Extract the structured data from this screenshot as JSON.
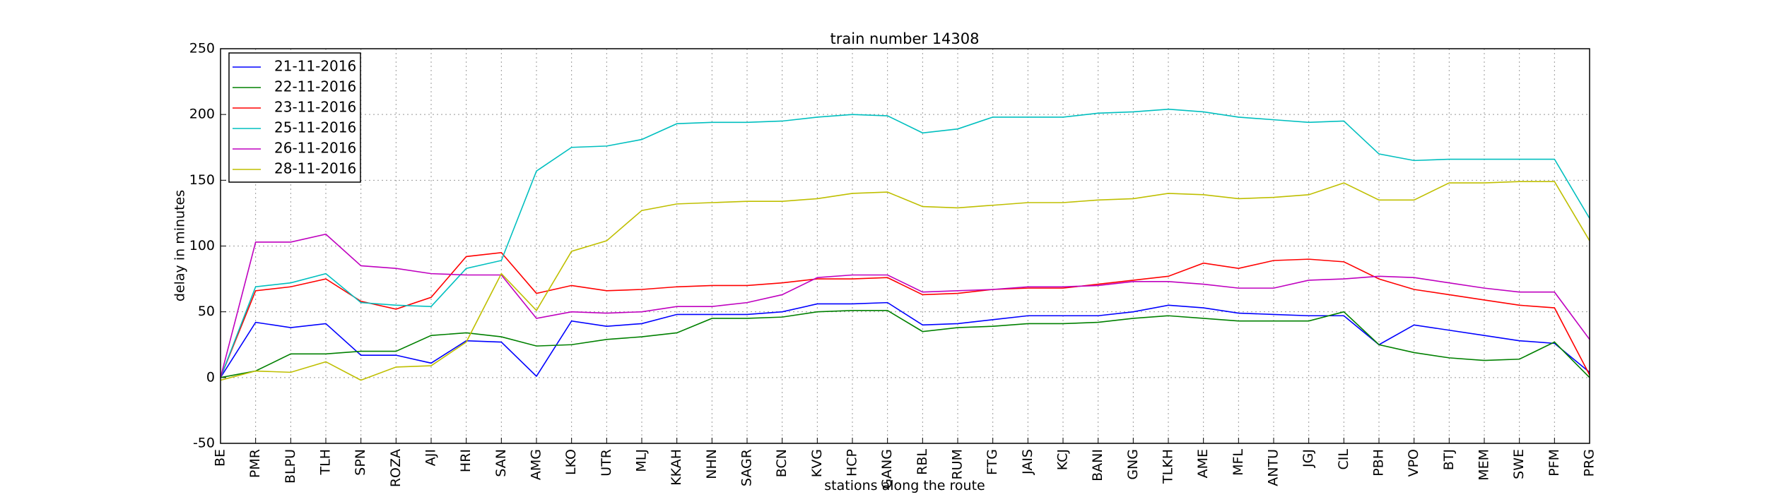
{
  "chart_data": {
    "type": "line",
    "title": "train number 14308",
    "x_label": "stations along the route",
    "y_label": "delay in minutes",
    "categories": [
      "BE",
      "PMR",
      "BLPU",
      "TLH",
      "SPN",
      "ROZA",
      "AJI",
      "HRI",
      "SAN",
      "AMG",
      "LKO",
      "UTR",
      "MLJ",
      "KKAH",
      "NHN",
      "SAGR",
      "BCN",
      "KVG",
      "HCP",
      "GANG",
      "RBL",
      "RUM",
      "FTG",
      "JAIS",
      "KCJ",
      "BANI",
      "GNG",
      "TLKH",
      "AME",
      "MFL",
      "ANTU",
      "JGJ",
      "CIL",
      "PBH",
      "VPO",
      "BTJ",
      "MEM",
      "SWE",
      "PFM",
      "PRG"
    ],
    "series": [
      {
        "name": "21-11-2016",
        "color": "#0000ff",
        "values": [
          0,
          42,
          38,
          41,
          17,
          17,
          11,
          28,
          27,
          1,
          43,
          39,
          41,
          48,
          48,
          48,
          50,
          56,
          56,
          57,
          40,
          41,
          44,
          47,
          47,
          47,
          50,
          55,
          53,
          49,
          48,
          47,
          47,
          25,
          40,
          36,
          32,
          28,
          26,
          4
        ]
      },
      {
        "name": "22-11-2016",
        "color": "#008000",
        "values": [
          0,
          5,
          18,
          18,
          20,
          20,
          32,
          34,
          31,
          24,
          25,
          29,
          31,
          34,
          45,
          45,
          46,
          50,
          51,
          51,
          35,
          38,
          39,
          41,
          41,
          42,
          45,
          47,
          45,
          43,
          43,
          43,
          50,
          25,
          19,
          15,
          13,
          14,
          27,
          0
        ]
      },
      {
        "name": "23-11-2016",
        "color": "#ff0000",
        "values": [
          0,
          66,
          69,
          75,
          58,
          52,
          61,
          92,
          95,
          64,
          70,
          66,
          67,
          69,
          70,
          70,
          72,
          75,
          75,
          76,
          63,
          64,
          67,
          68,
          68,
          71,
          74,
          77,
          87,
          83,
          89,
          90,
          88,
          75,
          67,
          63,
          59,
          55,
          53,
          2
        ]
      },
      {
        "name": "25-11-2016",
        "color": "#00bfbf",
        "values": [
          0,
          69,
          72,
          79,
          57,
          55,
          54,
          83,
          89,
          157,
          175,
          176,
          181,
          193,
          194,
          194,
          195,
          198,
          200,
          199,
          186,
          189,
          198,
          198,
          198,
          201,
          202,
          204,
          202,
          198,
          196,
          194,
          195,
          170,
          165,
          166,
          166,
          166,
          166,
          121
        ]
      },
      {
        "name": "26-11-2016",
        "color": "#bf00bf",
        "values": [
          0,
          103,
          103,
          109,
          85,
          83,
          79,
          78,
          78,
          45,
          50,
          49,
          50,
          54,
          54,
          57,
          63,
          76,
          78,
          78,
          65,
          66,
          67,
          69,
          69,
          70,
          73,
          73,
          71,
          68,
          68,
          74,
          75,
          77,
          76,
          72,
          68,
          65,
          65,
          29
        ]
      },
      {
        "name": "28-11-2016",
        "color": "#bfbf00",
        "values": [
          -2,
          5,
          4,
          12,
          -2,
          8,
          9,
          27,
          79,
          51,
          96,
          104,
          127,
          132,
          133,
          134,
          134,
          136,
          140,
          141,
          130,
          129,
          131,
          133,
          133,
          135,
          136,
          140,
          139,
          136,
          137,
          139,
          148,
          135,
          135,
          148,
          148,
          149,
          149,
          104
        ]
      }
    ],
    "ylim": [
      -50,
      250
    ],
    "yticks": [
      -50,
      0,
      50,
      100,
      150,
      200,
      250
    ],
    "grid": true,
    "legend": "upper left"
  }
}
